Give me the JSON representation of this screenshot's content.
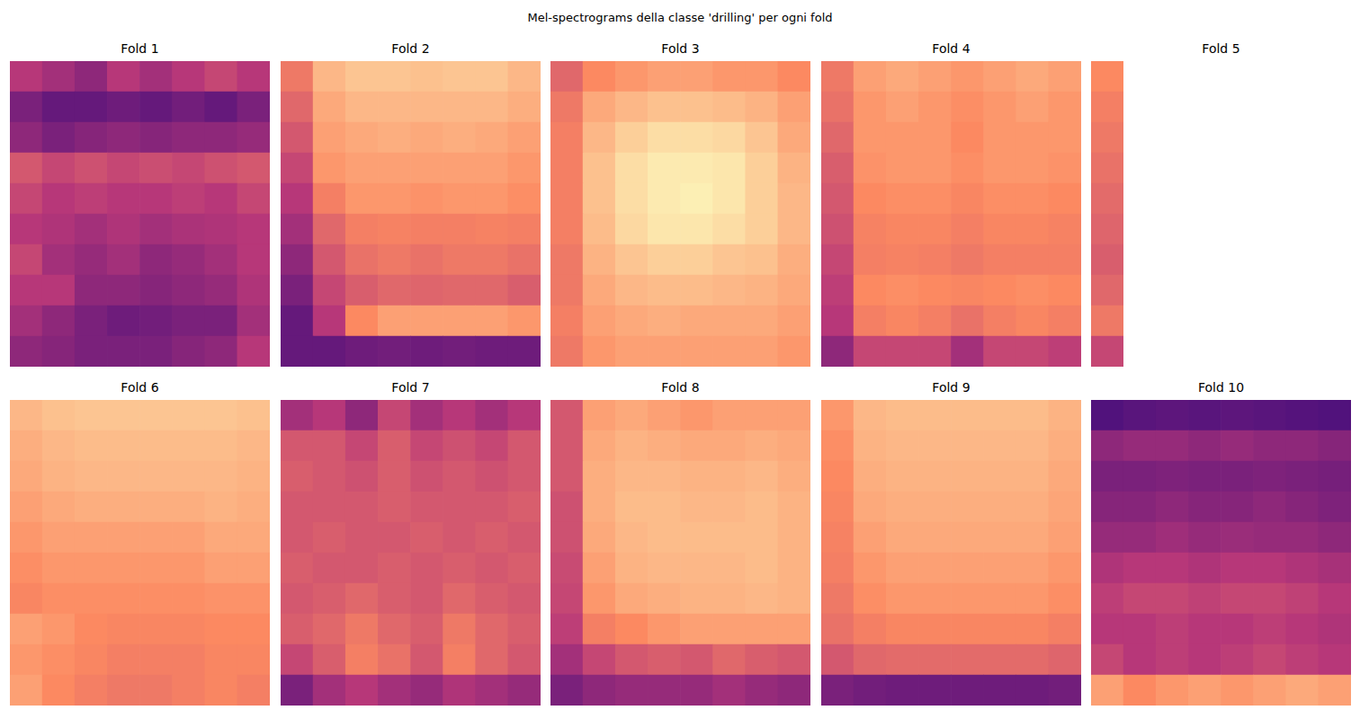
{
  "title": "Mel-spectrograms della classe 'drilling' per ogni fold",
  "chart_data": [
    {
      "type": "heatmap",
      "title": "Fold 1",
      "color": "magma",
      "grid": false,
      "tick_labels": false,
      "cell_range": [
        0,
        1
      ],
      "cells": [
        [
          0.5,
          0.45,
          0.4,
          0.5,
          0.45,
          0.5,
          0.55,
          0.5
        ],
        [
          0.35,
          0.3,
          0.3,
          0.32,
          0.3,
          0.33,
          0.3,
          0.35
        ],
        [
          0.4,
          0.35,
          0.38,
          0.4,
          0.38,
          0.4,
          0.4,
          0.42
        ],
        [
          0.6,
          0.55,
          0.58,
          0.55,
          0.57,
          0.55,
          0.58,
          0.6
        ],
        [
          0.55,
          0.5,
          0.52,
          0.5,
          0.5,
          0.52,
          0.5,
          0.55
        ],
        [
          0.5,
          0.48,
          0.45,
          0.48,
          0.45,
          0.47,
          0.48,
          0.5
        ],
        [
          0.55,
          0.45,
          0.42,
          0.45,
          0.4,
          0.42,
          0.45,
          0.5
        ],
        [
          0.5,
          0.5,
          0.4,
          0.4,
          0.38,
          0.4,
          0.42,
          0.48
        ],
        [
          0.45,
          0.4,
          0.35,
          0.32,
          0.33,
          0.35,
          0.35,
          0.45
        ],
        [
          0.4,
          0.38,
          0.35,
          0.35,
          0.35,
          0.38,
          0.4,
          0.5
        ]
      ]
    },
    {
      "type": "heatmap",
      "title": "Fold 2",
      "color": "magma",
      "grid": false,
      "tick_labels": false,
      "cell_range": [
        0,
        1
      ],
      "cells": [
        [
          0.7,
          0.85,
          0.88,
          0.88,
          0.87,
          0.88,
          0.88,
          0.85
        ],
        [
          0.65,
          0.82,
          0.85,
          0.85,
          0.85,
          0.85,
          0.85,
          0.83
        ],
        [
          0.6,
          0.8,
          0.82,
          0.83,
          0.82,
          0.83,
          0.82,
          0.8
        ],
        [
          0.55,
          0.78,
          0.8,
          0.8,
          0.8,
          0.8,
          0.8,
          0.78
        ],
        [
          0.5,
          0.72,
          0.78,
          0.78,
          0.77,
          0.78,
          0.78,
          0.76
        ],
        [
          0.45,
          0.65,
          0.72,
          0.73,
          0.72,
          0.72,
          0.73,
          0.72
        ],
        [
          0.4,
          0.6,
          0.68,
          0.7,
          0.68,
          0.7,
          0.7,
          0.68
        ],
        [
          0.35,
          0.55,
          0.62,
          0.65,
          0.64,
          0.65,
          0.65,
          0.62
        ],
        [
          0.3,
          0.5,
          0.75,
          0.8,
          0.8,
          0.8,
          0.8,
          0.78
        ],
        [
          0.3,
          0.3,
          0.32,
          0.33,
          0.32,
          0.33,
          0.32,
          0.32
        ]
      ]
    },
    {
      "type": "heatmap",
      "title": "Fold 3",
      "color": "magma",
      "grid": false,
      "tick_labels": false,
      "cell_range": [
        0,
        1
      ],
      "cells": [
        [
          0.65,
          0.75,
          0.78,
          0.8,
          0.8,
          0.78,
          0.78,
          0.75
        ],
        [
          0.7,
          0.82,
          0.85,
          0.87,
          0.87,
          0.86,
          0.84,
          0.8
        ],
        [
          0.72,
          0.85,
          0.9,
          0.93,
          0.93,
          0.92,
          0.88,
          0.82
        ],
        [
          0.72,
          0.87,
          0.93,
          0.96,
          0.96,
          0.95,
          0.9,
          0.84
        ],
        [
          0.72,
          0.87,
          0.93,
          0.96,
          0.97,
          0.95,
          0.9,
          0.85
        ],
        [
          0.72,
          0.86,
          0.92,
          0.95,
          0.95,
          0.93,
          0.9,
          0.85
        ],
        [
          0.7,
          0.84,
          0.88,
          0.9,
          0.9,
          0.88,
          0.87,
          0.83
        ],
        [
          0.7,
          0.82,
          0.85,
          0.86,
          0.86,
          0.85,
          0.84,
          0.82
        ],
        [
          0.72,
          0.8,
          0.82,
          0.83,
          0.82,
          0.82,
          0.82,
          0.8
        ],
        [
          0.7,
          0.78,
          0.8,
          0.8,
          0.8,
          0.8,
          0.8,
          0.78
        ]
      ]
    },
    {
      "type": "heatmap",
      "title": "Fold 4",
      "color": "magma",
      "grid": false,
      "tick_labels": false,
      "cell_range": [
        0,
        1
      ],
      "cells": [
        [
          0.7,
          0.8,
          0.82,
          0.8,
          0.78,
          0.8,
          0.82,
          0.8
        ],
        [
          0.68,
          0.78,
          0.8,
          0.78,
          0.76,
          0.78,
          0.8,
          0.78
        ],
        [
          0.65,
          0.78,
          0.78,
          0.78,
          0.75,
          0.78,
          0.78,
          0.78
        ],
        [
          0.62,
          0.77,
          0.78,
          0.78,
          0.76,
          0.78,
          0.78,
          0.77
        ],
        [
          0.6,
          0.75,
          0.76,
          0.76,
          0.74,
          0.76,
          0.76,
          0.75
        ],
        [
          0.58,
          0.73,
          0.74,
          0.74,
          0.72,
          0.74,
          0.74,
          0.73
        ],
        [
          0.55,
          0.72,
          0.73,
          0.72,
          0.7,
          0.72,
          0.72,
          0.72
        ],
        [
          0.52,
          0.75,
          0.76,
          0.75,
          0.74,
          0.75,
          0.76,
          0.75
        ],
        [
          0.5,
          0.72,
          0.74,
          0.72,
          0.68,
          0.72,
          0.74,
          0.72
        ],
        [
          0.4,
          0.55,
          0.55,
          0.55,
          0.45,
          0.55,
          0.55,
          0.52
        ]
      ]
    },
    {
      "type": "heatmap",
      "title": "Fold 5",
      "color": "magma",
      "grid": false,
      "tick_labels": false,
      "cell_range": [
        0,
        1
      ],
      "cells": [
        [
          0.75
        ],
        [
          0.72
        ],
        [
          0.7
        ],
        [
          0.68
        ],
        [
          0.66
        ],
        [
          0.64
        ],
        [
          0.62
        ],
        [
          0.65
        ],
        [
          0.7
        ],
        [
          0.55
        ]
      ]
    },
    {
      "type": "heatmap",
      "title": "Fold 6",
      "color": "magma",
      "grid": false,
      "tick_labels": false,
      "cell_range": [
        0,
        1
      ],
      "cells": [
        [
          0.85,
          0.87,
          0.88,
          0.88,
          0.88,
          0.88,
          0.88,
          0.87
        ],
        [
          0.83,
          0.85,
          0.86,
          0.86,
          0.86,
          0.86,
          0.86,
          0.85
        ],
        [
          0.82,
          0.84,
          0.85,
          0.85,
          0.85,
          0.85,
          0.85,
          0.84
        ],
        [
          0.8,
          0.82,
          0.83,
          0.83,
          0.83,
          0.83,
          0.84,
          0.83
        ],
        [
          0.78,
          0.8,
          0.8,
          0.8,
          0.8,
          0.8,
          0.82,
          0.82
        ],
        [
          0.76,
          0.78,
          0.78,
          0.78,
          0.78,
          0.78,
          0.8,
          0.8
        ],
        [
          0.74,
          0.76,
          0.76,
          0.76,
          0.76,
          0.76,
          0.77,
          0.77
        ],
        [
          0.8,
          0.78,
          0.75,
          0.74,
          0.74,
          0.74,
          0.75,
          0.75
        ],
        [
          0.78,
          0.76,
          0.74,
          0.72,
          0.72,
          0.72,
          0.74,
          0.74
        ],
        [
          0.8,
          0.75,
          0.72,
          0.7,
          0.7,
          0.72,
          0.74,
          0.72
        ]
      ]
    },
    {
      "type": "heatmap",
      "title": "Fold 7",
      "color": "magma",
      "grid": false,
      "tick_labels": false,
      "cell_range": [
        0,
        1
      ],
      "cells": [
        [
          0.45,
          0.5,
          0.4,
          0.55,
          0.45,
          0.5,
          0.45,
          0.5
        ],
        [
          0.6,
          0.6,
          0.55,
          0.62,
          0.55,
          0.58,
          0.55,
          0.6
        ],
        [
          0.62,
          0.6,
          0.58,
          0.62,
          0.58,
          0.6,
          0.58,
          0.6
        ],
        [
          0.6,
          0.6,
          0.6,
          0.62,
          0.6,
          0.6,
          0.6,
          0.62
        ],
        [
          0.6,
          0.62,
          0.6,
          0.6,
          0.62,
          0.6,
          0.62,
          0.6
        ],
        [
          0.62,
          0.6,
          0.6,
          0.62,
          0.6,
          0.62,
          0.6,
          0.62
        ],
        [
          0.6,
          0.62,
          0.65,
          0.62,
          0.6,
          0.65,
          0.62,
          0.6
        ],
        [
          0.62,
          0.65,
          0.7,
          0.65,
          0.62,
          0.7,
          0.65,
          0.62
        ],
        [
          0.55,
          0.62,
          0.72,
          0.68,
          0.6,
          0.72,
          0.65,
          0.6
        ],
        [
          0.35,
          0.45,
          0.5,
          0.45,
          0.42,
          0.48,
          0.45,
          0.42
        ]
      ]
    },
    {
      "type": "heatmap",
      "title": "Fold 8",
      "color": "magma",
      "grid": false,
      "tick_labels": false,
      "cell_range": [
        0,
        1
      ],
      "cells": [
        [
          0.6,
          0.8,
          0.82,
          0.8,
          0.78,
          0.8,
          0.8,
          0.8
        ],
        [
          0.6,
          0.82,
          0.84,
          0.83,
          0.82,
          0.82,
          0.83,
          0.82
        ],
        [
          0.6,
          0.83,
          0.85,
          0.85,
          0.84,
          0.84,
          0.85,
          0.83
        ],
        [
          0.58,
          0.83,
          0.86,
          0.86,
          0.85,
          0.85,
          0.86,
          0.84
        ],
        [
          0.58,
          0.82,
          0.85,
          0.86,
          0.86,
          0.86,
          0.86,
          0.84
        ],
        [
          0.56,
          0.8,
          0.84,
          0.85,
          0.85,
          0.85,
          0.86,
          0.84
        ],
        [
          0.55,
          0.78,
          0.82,
          0.83,
          0.84,
          0.84,
          0.85,
          0.84
        ],
        [
          0.52,
          0.72,
          0.75,
          0.78,
          0.8,
          0.8,
          0.8,
          0.8
        ],
        [
          0.45,
          0.55,
          0.6,
          0.62,
          0.6,
          0.65,
          0.62,
          0.6
        ],
        [
          0.35,
          0.4,
          0.42,
          0.42,
          0.42,
          0.45,
          0.42,
          0.4
        ]
      ]
    },
    {
      "type": "heatmap",
      "title": "Fold 9",
      "color": "magma",
      "grid": false,
      "tick_labels": false,
      "cell_range": [
        0,
        1
      ],
      "cells": [
        [
          0.78,
          0.85,
          0.86,
          0.86,
          0.86,
          0.86,
          0.86,
          0.84
        ],
        [
          0.76,
          0.84,
          0.85,
          0.85,
          0.85,
          0.85,
          0.85,
          0.83
        ],
        [
          0.75,
          0.83,
          0.84,
          0.84,
          0.84,
          0.84,
          0.84,
          0.82
        ],
        [
          0.74,
          0.82,
          0.83,
          0.83,
          0.83,
          0.83,
          0.83,
          0.81
        ],
        [
          0.73,
          0.8,
          0.82,
          0.82,
          0.82,
          0.82,
          0.82,
          0.8
        ],
        [
          0.72,
          0.78,
          0.8,
          0.8,
          0.8,
          0.8,
          0.8,
          0.78
        ],
        [
          0.7,
          0.76,
          0.78,
          0.78,
          0.78,
          0.78,
          0.78,
          0.76
        ],
        [
          0.68,
          0.72,
          0.74,
          0.74,
          0.74,
          0.74,
          0.74,
          0.72
        ],
        [
          0.6,
          0.65,
          0.66,
          0.66,
          0.66,
          0.66,
          0.66,
          0.64
        ],
        [
          0.35,
          0.33,
          0.32,
          0.32,
          0.32,
          0.32,
          0.32,
          0.33
        ]
      ]
    },
    {
      "type": "heatmap",
      "title": "Fold 10",
      "color": "magma",
      "grid": false,
      "tick_labels": false,
      "cell_range": [
        0,
        1
      ],
      "cells": [
        [
          0.25,
          0.27,
          0.28,
          0.27,
          0.28,
          0.27,
          0.26,
          0.25
        ],
        [
          0.4,
          0.42,
          0.42,
          0.4,
          0.42,
          0.4,
          0.4,
          0.38
        ],
        [
          0.35,
          0.35,
          0.36,
          0.35,
          0.35,
          0.36,
          0.35,
          0.34
        ],
        [
          0.38,
          0.38,
          0.4,
          0.38,
          0.38,
          0.4,
          0.38,
          0.36
        ],
        [
          0.42,
          0.42,
          0.44,
          0.42,
          0.43,
          0.42,
          0.42,
          0.4
        ],
        [
          0.48,
          0.5,
          0.5,
          0.48,
          0.5,
          0.5,
          0.48,
          0.46
        ],
        [
          0.52,
          0.55,
          0.55,
          0.53,
          0.55,
          0.55,
          0.53,
          0.5
        ],
        [
          0.5,
          0.5,
          0.52,
          0.5,
          0.5,
          0.52,
          0.5,
          0.48
        ],
        [
          0.55,
          0.5,
          0.52,
          0.5,
          0.52,
          0.55,
          0.52,
          0.5
        ],
        [
          0.8,
          0.75,
          0.78,
          0.8,
          0.78,
          0.8,
          0.82,
          0.8
        ]
      ]
    }
  ]
}
